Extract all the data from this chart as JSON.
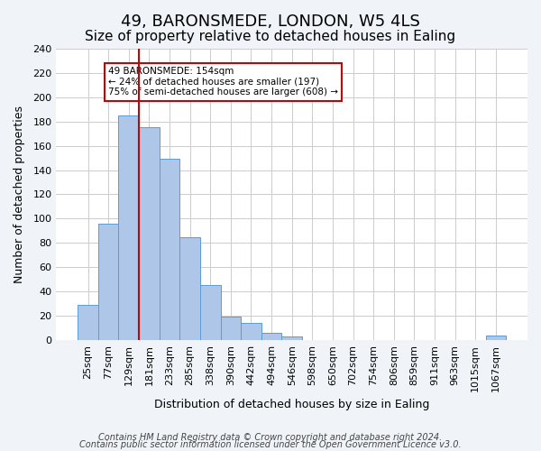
{
  "title": "49, BARONSMEDE, LONDON, W5 4LS",
  "subtitle": "Size of property relative to detached houses in Ealing",
  "xlabel": "Distribution of detached houses by size in Ealing",
  "ylabel": "Number of detached properties",
  "bar_labels": [
    "25sqm",
    "77sqm",
    "129sqm",
    "181sqm",
    "233sqm",
    "285sqm",
    "338sqm",
    "390sqm",
    "442sqm",
    "494sqm",
    "546sqm",
    "598sqm",
    "650sqm",
    "702sqm",
    "754sqm",
    "806sqm",
    "859sqm",
    "911sqm",
    "963sqm",
    "1015sqm",
    "1067sqm"
  ],
  "bar_heights": [
    29,
    96,
    185,
    175,
    149,
    85,
    45,
    19,
    14,
    6,
    3,
    0,
    0,
    0,
    0,
    0,
    0,
    0,
    0,
    0,
    4
  ],
  "bar_color": "#aec6e8",
  "bar_edge_color": "#5b9bd5",
  "vline_x": 3,
  "vline_color": "#cc0000",
  "ylim": [
    0,
    240
  ],
  "yticks": [
    0,
    20,
    40,
    60,
    80,
    100,
    120,
    140,
    160,
    180,
    200,
    220,
    240
  ],
  "annotation_title": "49 BARONSMEDE: 154sqm",
  "annotation_line1": "← 24% of detached houses are smaller (197)",
  "annotation_line2": "75% of semi-detached houses are larger (608) →",
  "annotation_box_color": "#cc0000",
  "footer_line1": "Contains HM Land Registry data © Crown copyright and database right 2024.",
  "footer_line2": "Contains public sector information licensed under the Open Government Licence v3.0.",
  "background_color": "#f0f4f8",
  "plot_background_color": "#ffffff",
  "grid_color": "#cccccc",
  "title_fontsize": 13,
  "subtitle_fontsize": 11,
  "axis_label_fontsize": 9,
  "tick_fontsize": 8,
  "footer_fontsize": 7
}
